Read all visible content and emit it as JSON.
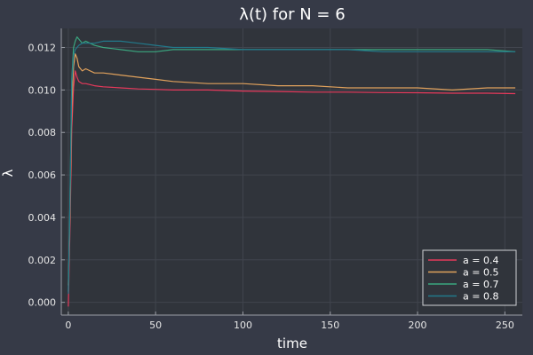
{
  "chart_data": {
    "type": "line",
    "title": "λ(t) for N = 6",
    "xlabel": "time",
    "ylabel": "λ",
    "xlim": [
      -4,
      260
    ],
    "ylim": [
      -0.0006,
      0.0129
    ],
    "xticks": [
      0,
      50,
      100,
      150,
      200,
      250
    ],
    "xtick_labels": [
      "0",
      "50",
      "100",
      "150",
      "200",
      "250"
    ],
    "yticks": [
      0.0,
      0.002,
      0.004,
      0.006,
      0.008,
      0.01,
      0.012
    ],
    "ytick_labels": [
      "0.000",
      "0.002",
      "0.004",
      "0.006",
      "0.008",
      "0.010",
      "0.012"
    ],
    "grid": true,
    "legend_position": "bottom-right",
    "background_color": "#363a47",
    "plot_background_color": "#30343b",
    "series": [
      {
        "name": "a = 0.4",
        "color": "#e6395b",
        "x": [
          0,
          1,
          2,
          3,
          4,
          5,
          6,
          8,
          10,
          15,
          20,
          30,
          40,
          50,
          60,
          80,
          100,
          120,
          140,
          160,
          180,
          200,
          220,
          240,
          256
        ],
        "y": [
          -0.0002,
          0.0035,
          0.0082,
          0.0101,
          0.0109,
          0.0106,
          0.0104,
          0.0103,
          0.0103,
          0.0102,
          0.01015,
          0.0101,
          0.01005,
          0.01003,
          0.01,
          0.01,
          0.00995,
          0.00993,
          0.0099,
          0.0099,
          0.00988,
          0.00987,
          0.00985,
          0.00985,
          0.00983
        ]
      },
      {
        "name": "a = 0.5",
        "color": "#e0a15c",
        "x": [
          0,
          1,
          2,
          3,
          4,
          5,
          6,
          8,
          10,
          15,
          20,
          30,
          40,
          50,
          60,
          80,
          100,
          120,
          140,
          160,
          180,
          200,
          220,
          240,
          256
        ],
        "y": [
          0.0008,
          0.0042,
          0.0092,
          0.0111,
          0.0117,
          0.0115,
          0.0111,
          0.0109,
          0.011,
          0.0108,
          0.0108,
          0.0107,
          0.0106,
          0.0105,
          0.0104,
          0.0103,
          0.0103,
          0.0102,
          0.0102,
          0.0101,
          0.0101,
          0.0101,
          0.01,
          0.0101,
          0.0101
        ]
      },
      {
        "name": "a = 0.7",
        "color": "#3aa67f",
        "x": [
          0,
          1,
          2,
          3,
          4,
          5,
          6,
          8,
          10,
          15,
          20,
          30,
          40,
          50,
          60,
          80,
          100,
          120,
          140,
          160,
          180,
          200,
          220,
          240,
          256
        ],
        "y": [
          0.0005,
          0.005,
          0.0105,
          0.012,
          0.0123,
          0.0125,
          0.0124,
          0.0122,
          0.0123,
          0.0121,
          0.012,
          0.0119,
          0.0118,
          0.0118,
          0.0119,
          0.0119,
          0.0119,
          0.0119,
          0.0119,
          0.0119,
          0.0119,
          0.0119,
          0.0119,
          0.0119,
          0.0118
        ]
      },
      {
        "name": "a = 0.8",
        "color": "#22798b",
        "x": [
          0,
          1,
          2,
          3,
          4,
          5,
          6,
          8,
          10,
          15,
          20,
          30,
          40,
          50,
          60,
          80,
          100,
          120,
          140,
          160,
          180,
          200,
          220,
          240,
          256
        ],
        "y": [
          0.0004,
          0.0048,
          0.0103,
          0.0116,
          0.0119,
          0.012,
          0.0121,
          0.0122,
          0.0122,
          0.0122,
          0.0123,
          0.0123,
          0.0122,
          0.0121,
          0.012,
          0.012,
          0.0119,
          0.0119,
          0.0119,
          0.0119,
          0.0118,
          0.0118,
          0.0118,
          0.0118,
          0.0118
        ]
      }
    ]
  }
}
